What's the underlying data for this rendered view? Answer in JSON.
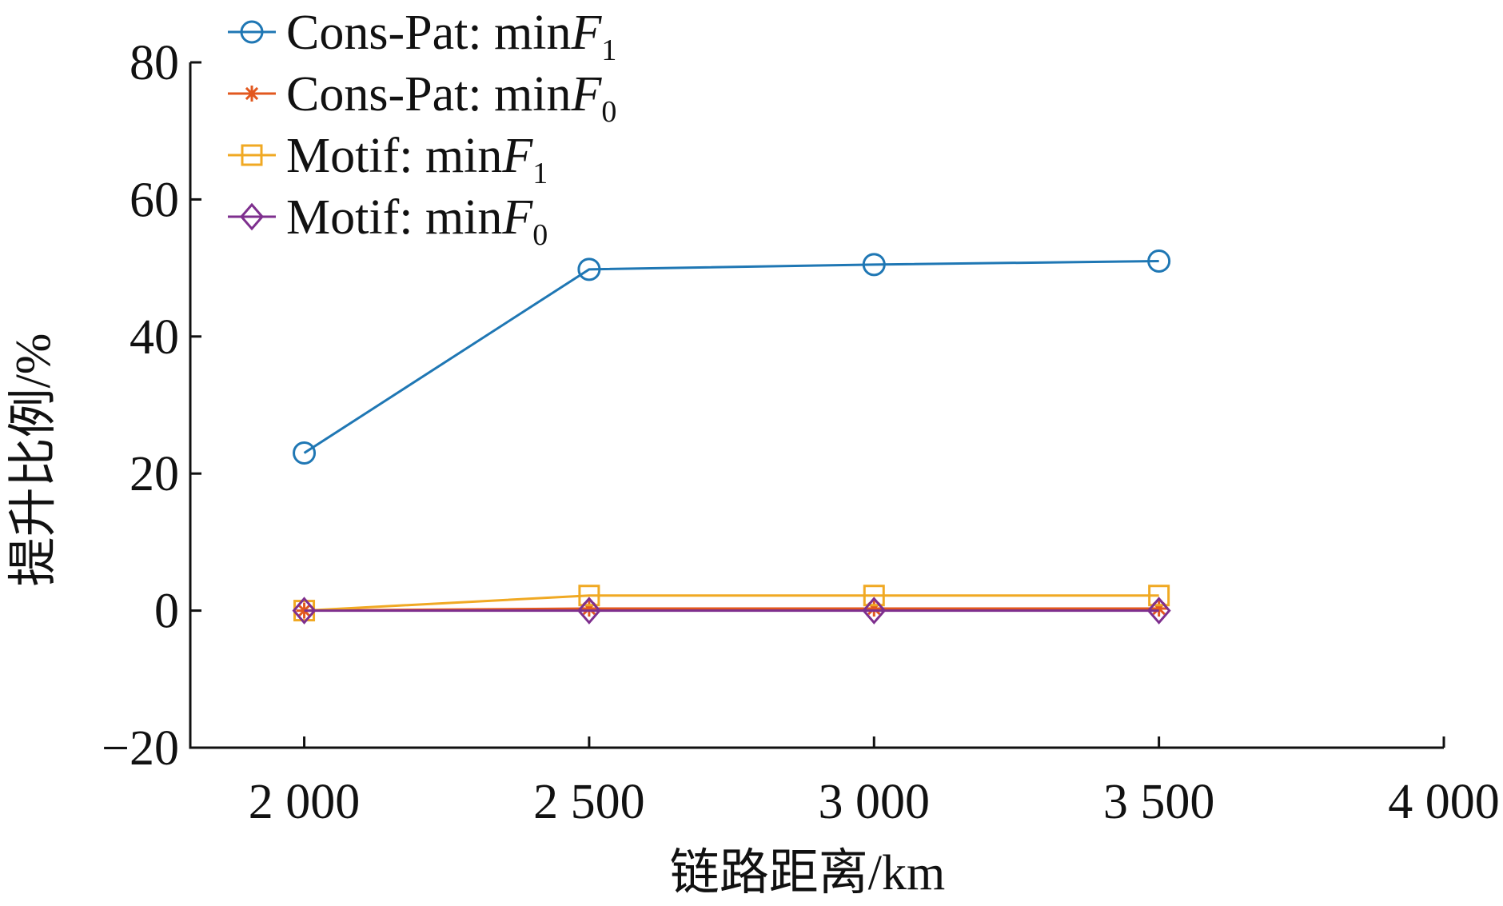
{
  "chart_data": {
    "type": "line",
    "xlabel": "链路距离/km",
    "ylabel": "提升比例/%",
    "xlim": [
      1800,
      4000
    ],
    "ylim": [
      -20,
      80
    ],
    "x_ticks": [
      2000,
      2500,
      3000,
      3500,
      4000
    ],
    "x_tick_labels": [
      "2 000",
      "2 500",
      "3 000",
      "3 500",
      "4 000"
    ],
    "y_ticks": [
      -20,
      0,
      20,
      40,
      60,
      80
    ],
    "y_tick_labels": [
      "−20",
      "0",
      "20",
      "40",
      "60",
      "80"
    ],
    "grid": false,
    "legend_position": "top-left",
    "x": [
      2000,
      2500,
      3000,
      3500
    ],
    "series": [
      {
        "name": "Cons-Pat: minF1",
        "label_main": "Cons-Pat: min",
        "label_var": "F",
        "label_sub": "1",
        "marker": "circle",
        "color": "#1f77b4",
        "values": [
          23,
          49.8,
          50.5,
          51
        ]
      },
      {
        "name": "Cons-Pat: minF0",
        "label_main": "Cons-Pat: min",
        "label_var": "F",
        "label_sub": "0",
        "marker": "asterisk",
        "color": "#e2581f",
        "values": [
          0,
          0.3,
          0.3,
          0.3
        ]
      },
      {
        "name": "Motif: minF1",
        "label_main": "Motif: min",
        "label_var": "F",
        "label_sub": "1",
        "marker": "square",
        "color": "#f0a923",
        "values": [
          0,
          2.2,
          2.2,
          2.2
        ]
      },
      {
        "name": "Motif: minF0",
        "label_main": "Motif: min",
        "label_var": "F",
        "label_sub": "0",
        "marker": "diamond",
        "color": "#7e2f8e",
        "values": [
          0,
          0,
          0,
          0
        ]
      }
    ]
  }
}
